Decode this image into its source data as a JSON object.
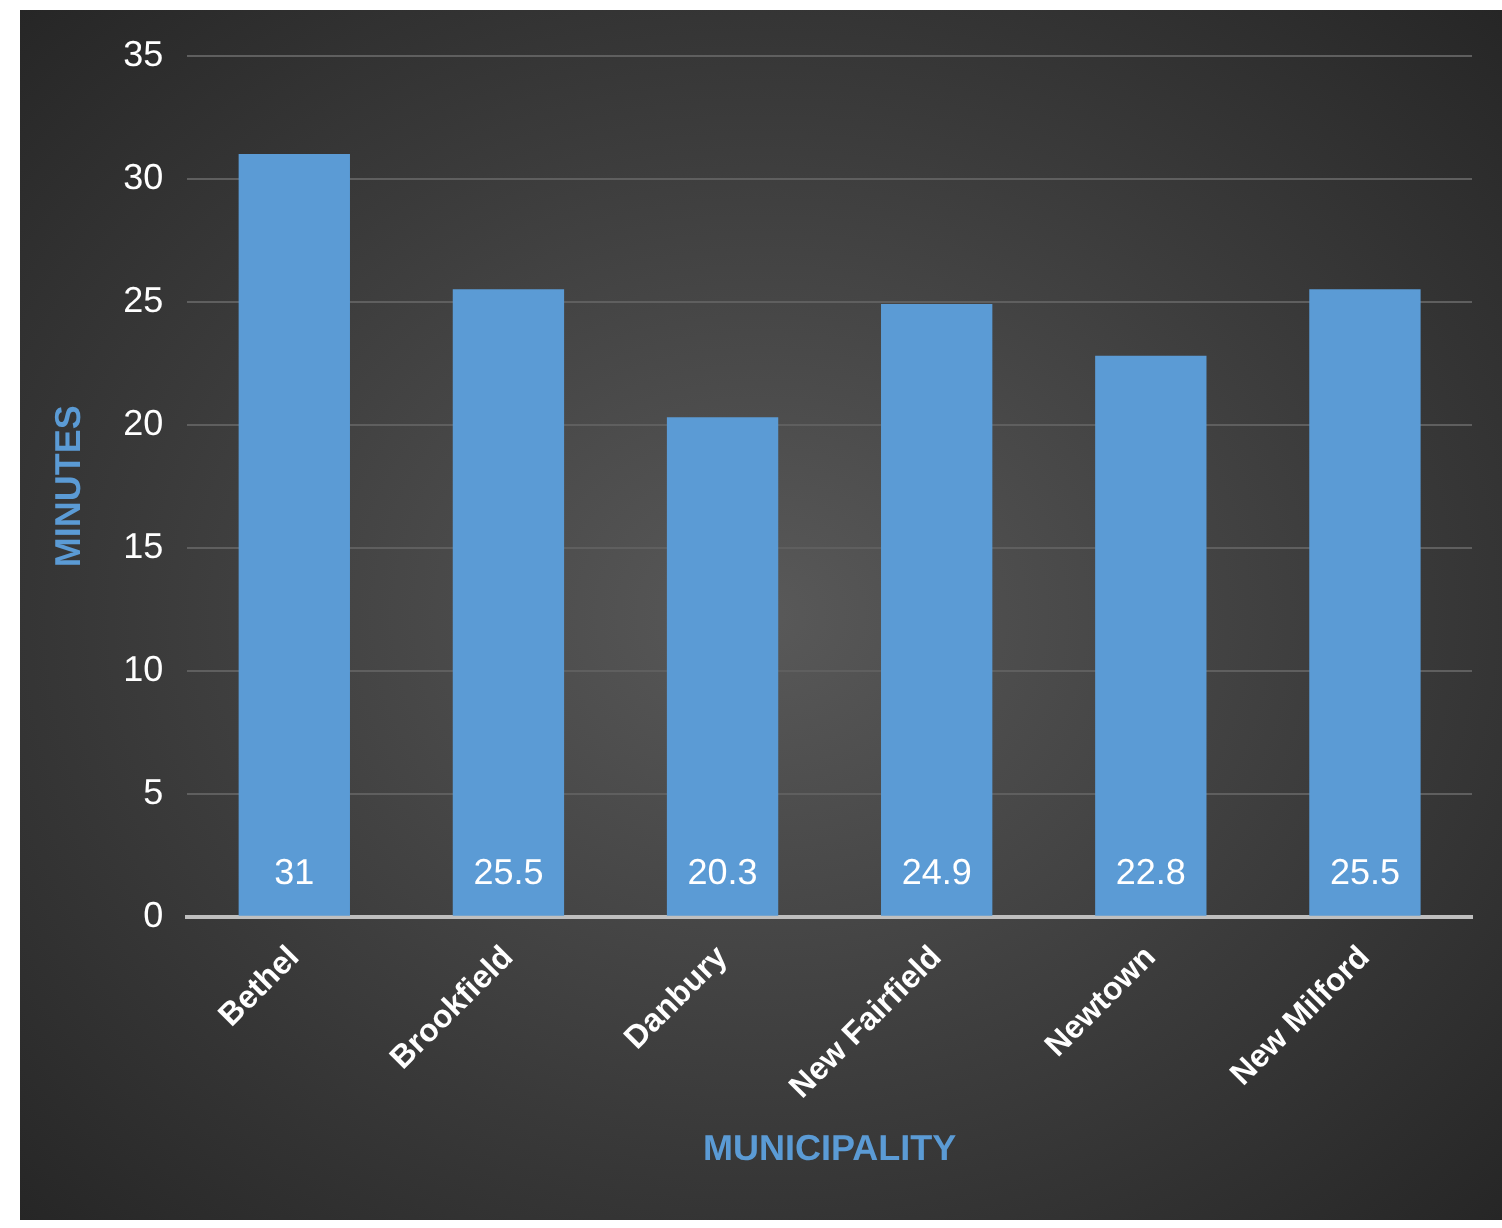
{
  "chart_data": {
    "type": "bar",
    "xlabel": "MUNICIPALITY",
    "ylabel": "MINUTES",
    "categories": [
      "Bethel",
      "Brookfield",
      "Danbury",
      "New Fairfield",
      "Newtown",
      "New Milford"
    ],
    "values": [
      31,
      25.5,
      20.3,
      24.9,
      22.8,
      25.5
    ],
    "color": "#5b9bd5",
    "ylim": [
      0,
      35
    ],
    "yticks": [
      0,
      5,
      10,
      15,
      20,
      25,
      30,
      35
    ],
    "grid": "y",
    "data_labels": true,
    "legend": false
  }
}
